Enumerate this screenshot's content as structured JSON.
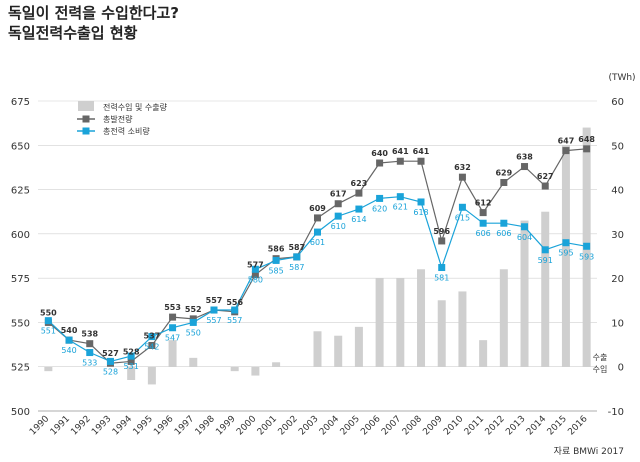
{
  "header": {
    "title": "독일이 전력을 수입한다고?",
    "subtitle": "독일전력수출입 현황"
  },
  "source": "자료 BMWi 2017",
  "colors": {
    "gross": "#666666",
    "consumption": "#1aa3d9",
    "bars": "#cfcfcf",
    "grid": "#d0d0d0",
    "axis_text": "#333333"
  },
  "chart_data": {
    "type": "bar+line",
    "categories": [
      "1990",
      "1991",
      "1992",
      "1993",
      "1994",
      "1995",
      "1996",
      "1997",
      "1998",
      "1999",
      "2000",
      "2001",
      "2002",
      "2003",
      "2004",
      "2005",
      "2006",
      "2007",
      "2008",
      "2009",
      "2010",
      "2011",
      "2012",
      "2013",
      "2014",
      "2015",
      "2016"
    ],
    "left_axis": {
      "ylim": [
        500,
        675
      ],
      "ticks": [
        500,
        525,
        550,
        575,
        600,
        625,
        650,
        675
      ]
    },
    "right_axis": {
      "unit": "(TWh)",
      "ylim": [
        -10,
        60
      ],
      "ticks": [
        -10,
        0,
        10,
        20,
        30,
        40,
        50,
        60
      ],
      "labels_at_zero": [
        "수출",
        "수입"
      ]
    },
    "legend": {
      "bars": "전력수입 및 수출량",
      "gross": "총발전량",
      "consumption": "총전력 소비량"
    },
    "series": [
      {
        "key": "gross",
        "name": "총발전량",
        "type": "line",
        "axis": "left",
        "values": [
          550,
          540,
          538,
          527,
          528,
          537,
          553,
          552,
          557,
          556,
          577,
          586,
          587,
          609,
          617,
          623,
          640,
          641,
          641,
          596,
          632,
          612,
          629,
          638,
          627,
          647,
          648
        ],
        "labels": [
          "550",
          "540",
          "538",
          "527",
          "528",
          "537",
          "553",
          "552",
          "557",
          "556",
          "577",
          "586",
          "587",
          "609",
          "617",
          "623",
          "640",
          "641",
          "641",
          "596",
          "632",
          "612",
          "629",
          "638",
          "627",
          "647",
          "648"
        ]
      },
      {
        "key": "consumption",
        "name": "총전력 소비량",
        "type": "line",
        "axis": "left",
        "values": [
          551,
          540,
          533,
          528,
          531,
          542,
          547,
          550,
          557,
          557,
          580,
          585,
          587,
          601,
          610,
          614,
          620,
          621,
          618,
          581,
          615,
          606,
          606,
          604,
          591,
          595,
          593
        ],
        "labels": [
          "551",
          "540",
          "533",
          "528",
          "531",
          "542",
          "547",
          "550",
          "557",
          "557",
          "580",
          "585",
          "587",
          "601",
          "610",
          "614",
          "620",
          "621",
          "618",
          "581",
          "615",
          "606",
          "606",
          "604",
          "591",
          "595",
          "593"
        ]
      },
      {
        "key": "bars",
        "name": "전력수입 및 수출량",
        "type": "bar",
        "axis": "right",
        "values": [
          -1,
          0,
          0,
          0,
          -3,
          -4,
          6,
          2,
          0,
          -1,
          -2,
          1,
          0,
          8,
          7,
          9,
          20,
          20,
          22,
          15,
          17,
          6,
          22,
          33,
          35,
          50,
          54
        ]
      }
    ]
  }
}
